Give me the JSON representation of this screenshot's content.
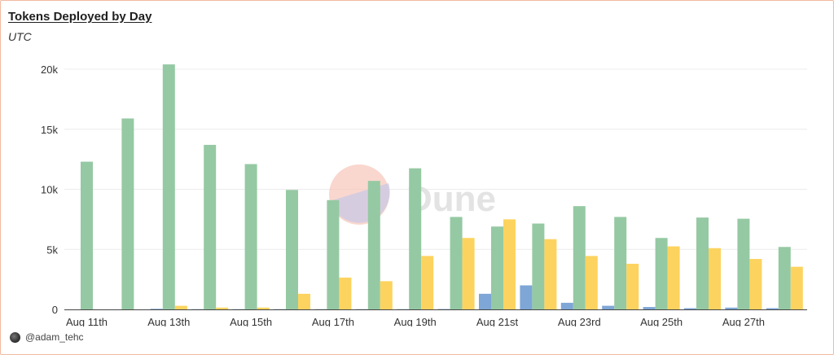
{
  "chart_data": {
    "type": "bar",
    "title": "Tokens Deployed by Day",
    "subtitle": "UTC",
    "xlabel": "",
    "ylabel": "",
    "ylim": [
      0,
      20000
    ],
    "yticks": [
      0,
      5000,
      10000,
      15000,
      20000
    ],
    "ytick_labels": [
      "0",
      "5k",
      "10k",
      "15k",
      "20k"
    ],
    "grid": true,
    "categories": [
      "Aug 11th",
      "Aug 12th",
      "Aug 13th",
      "Aug 14th",
      "Aug 15th",
      "Aug 16th",
      "Aug 17th",
      "Aug 18th",
      "Aug 19th",
      "Aug 20th",
      "Aug 21st",
      "Aug 22nd",
      "Aug 23rd",
      "Aug 24th",
      "Aug 25th",
      "Aug 26th",
      "Aug 27th",
      "Aug 28th"
    ],
    "x_tick_labels": [
      "Aug 11th",
      "Aug 13th",
      "Aug 15th",
      "Aug 17th",
      "Aug 19th",
      "Aug 21st",
      "Aug 23rd",
      "Aug 25th",
      "Aug 27th"
    ],
    "series": [
      {
        "color": "#7ea6d6",
        "values": [
          0,
          0,
          50,
          20,
          20,
          20,
          20,
          20,
          20,
          30,
          1300,
          2000,
          550,
          300,
          200,
          100,
          150,
          100
        ]
      },
      {
        "color": "#95c9a3",
        "values": [
          12300,
          15900,
          20400,
          13700,
          12100,
          9950,
          9100,
          10700,
          11750,
          7700,
          6900,
          7150,
          8600,
          7700,
          5950,
          7650,
          7550,
          5200
        ]
      },
      {
        "color": "#fdd35f",
        "values": [
          0,
          0,
          300,
          150,
          150,
          1300,
          2650,
          2350,
          4450,
          5950,
          7500,
          5850,
          4450,
          3800,
          5250,
          5100,
          4200,
          3550
        ]
      }
    ]
  },
  "watermark": {
    "label": "Dune"
  },
  "footer": {
    "author": "@adam_tehc"
  }
}
